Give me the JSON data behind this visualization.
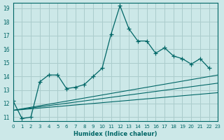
{
  "xlabel": "Humidex (Indice chaleur)",
  "ylabel": "",
  "bg_color": "#cce8e8",
  "grid_color": "#aacccc",
  "line_color": "#006666",
  "xlim": [
    0,
    23
  ],
  "ylim": [
    10.7,
    19.4
  ],
  "yticks": [
    11,
    12,
    13,
    14,
    15,
    16,
    17,
    18,
    19
  ],
  "xticks": [
    0,
    1,
    2,
    3,
    4,
    5,
    6,
    7,
    8,
    9,
    10,
    11,
    12,
    13,
    14,
    15,
    16,
    17,
    18,
    19,
    20,
    21,
    22,
    23
  ],
  "main_x": [
    0,
    1,
    2,
    3,
    4,
    5,
    6,
    7,
    8,
    9,
    10,
    11,
    12,
    13,
    14,
    15,
    16,
    17,
    18,
    19,
    20,
    21,
    22
  ],
  "main_y": [
    12.2,
    10.9,
    11.0,
    13.6,
    14.1,
    14.1,
    13.1,
    13.2,
    13.4,
    14.0,
    14.6,
    17.1,
    19.2,
    17.5,
    16.6,
    16.6,
    15.7,
    16.1,
    15.5,
    15.3,
    14.9,
    15.3,
    14.6
  ],
  "line1_x": [
    0,
    23
  ],
  "line1_y": [
    11.5,
    14.1
  ],
  "line2_x": [
    0,
    23
  ],
  "line2_y": [
    11.5,
    13.5
  ],
  "line3_x": [
    0,
    23
  ],
  "line3_y": [
    11.5,
    12.8
  ]
}
